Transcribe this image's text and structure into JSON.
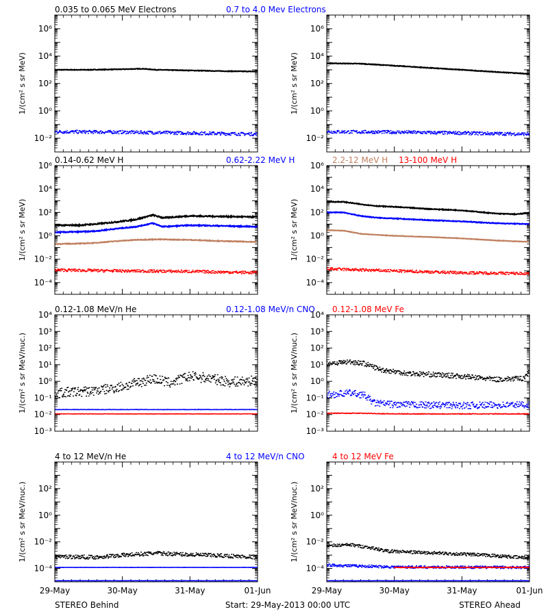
{
  "footer": {
    "left": "STEREO Behind",
    "center": "Start: 29-May-2013 00:00 UTC",
    "right": "STEREO Ahead"
  },
  "x_ticks": [
    "29-May",
    "30-May",
    "31-May",
    "01-Jun"
  ],
  "colors": {
    "black": "#000000",
    "blue": "#0000ff",
    "tan": "#c08060",
    "red": "#ff0000"
  },
  "chart_data": [
    {
      "type": "scatter",
      "row": 0,
      "col": 0,
      "title_segments": [
        {
          "text": "0.035 to 0.065 MeV Electrons",
          "color": "#000000"
        },
        {
          "text": "0.7 to 4.0 Mev Electrons",
          "color": "#0000ff"
        }
      ],
      "ylabel": "1/(cm² s sr MeV)",
      "yscale": "log",
      "ylim_exp": [
        -3,
        7
      ],
      "ytick_exp": [
        -2,
        0,
        2,
        4,
        6
      ],
      "xlim": [
        0,
        3
      ],
      "series": [
        {
          "color": "#000000",
          "style": "line",
          "x": [
            0,
            0.5,
            1.0,
            1.3,
            1.5,
            2.0,
            2.5,
            3.0
          ],
          "y": [
            1000,
            1000,
            1100,
            1200,
            1000,
            900,
            800,
            750
          ],
          "noise": 0.02
        },
        {
          "color": "#0000ff",
          "style": "dots",
          "x": [
            0,
            1.0,
            2.0,
            3.0
          ],
          "y": [
            0.03,
            0.028,
            0.024,
            0.02
          ],
          "noise": 0.12
        }
      ]
    },
    {
      "type": "scatter",
      "row": 0,
      "col": 1,
      "title_segments": [],
      "ylabel": "1/(cm² s sr MeV)",
      "yscale": "log",
      "ylim_exp": [
        -3,
        7
      ],
      "ytick_exp": [
        -2,
        0,
        2,
        4,
        6
      ],
      "xlim": [
        0,
        3
      ],
      "series": [
        {
          "color": "#000000",
          "style": "line",
          "x": [
            0,
            0.5,
            1.0,
            1.5,
            2.0,
            2.5,
            3.0
          ],
          "y": [
            3000,
            2800,
            2000,
            1400,
            1000,
            700,
            500
          ],
          "noise": 0.02
        },
        {
          "color": "#0000ff",
          "style": "dots",
          "x": [
            0,
            1.0,
            2.0,
            3.0
          ],
          "y": [
            0.03,
            0.028,
            0.024,
            0.02
          ],
          "noise": 0.12
        }
      ]
    },
    {
      "type": "scatter",
      "row": 1,
      "col": 0,
      "title_segments": [
        {
          "text": "0.14-0.62 MeV H",
          "color": "#000000"
        },
        {
          "text": "0.62-2.22 MeV H",
          "color": "#0000ff"
        },
        {
          "text": "2.2-12 MeV H",
          "color": "#c08060"
        },
        {
          "text": "13-100 MeV H",
          "color": "#ff0000"
        }
      ],
      "ylabel": "1/(cm² s sr MeV)",
      "yscale": "log",
      "ylim_exp": [
        -5,
        6
      ],
      "ytick_exp": [
        -4,
        -2,
        0,
        2,
        4,
        6
      ],
      "xlim": [
        0,
        3
      ],
      "series": [
        {
          "color": "#000000",
          "style": "line",
          "x": [
            0,
            0.35,
            0.6,
            0.9,
            1.2,
            1.45,
            1.6,
            2.0,
            2.5,
            3.0
          ],
          "y": [
            8,
            8,
            10,
            15,
            25,
            60,
            35,
            50,
            45,
            40
          ],
          "noise": 0.05
        },
        {
          "color": "#0000ff",
          "style": "line",
          "x": [
            0,
            0.35,
            0.6,
            0.9,
            1.2,
            1.45,
            1.6,
            2.0,
            2.5,
            3.0
          ],
          "y": [
            2,
            2.2,
            2.5,
            4,
            6,
            12,
            6,
            8,
            7,
            6
          ],
          "noise": 0.04
        },
        {
          "color": "#c08060",
          "style": "line",
          "x": [
            0,
            0.4,
            0.6,
            0.9,
            1.2,
            1.5,
            2.0,
            2.5,
            3.0
          ],
          "y": [
            0.2,
            0.22,
            0.25,
            0.35,
            0.45,
            0.5,
            0.45,
            0.35,
            0.3
          ],
          "noise": 0.03
        },
        {
          "color": "#ff0000",
          "style": "dots",
          "x": [
            0,
            1.0,
            2.0,
            3.0
          ],
          "y": [
            0.0012,
            0.001,
            0.0009,
            0.0007
          ],
          "noise": 0.12
        }
      ]
    },
    {
      "type": "scatter",
      "row": 1,
      "col": 1,
      "title_segments": [],
      "ylabel": "1/(cm² s sr MeV)",
      "yscale": "log",
      "ylim_exp": [
        -5,
        6
      ],
      "ytick_exp": [
        -4,
        -2,
        0,
        2,
        4,
        6
      ],
      "xlim": [
        0,
        3
      ],
      "series": [
        {
          "color": "#000000",
          "style": "line",
          "x": [
            0,
            0.25,
            0.5,
            0.75,
            1.0,
            1.5,
            2.0,
            2.5,
            2.8,
            3.0
          ],
          "y": [
            800,
            800,
            500,
            350,
            300,
            200,
            150,
            80,
            70,
            90
          ],
          "noise": 0.03
        },
        {
          "color": "#0000ff",
          "style": "line",
          "x": [
            0,
            0.25,
            0.5,
            0.75,
            1.0,
            1.5,
            2.0,
            2.5,
            3.0
          ],
          "y": [
            100,
            100,
            50,
            35,
            30,
            22,
            17,
            12,
            10
          ],
          "noise": 0.03
        },
        {
          "color": "#c08060",
          "style": "line",
          "x": [
            0,
            0.25,
            0.5,
            0.75,
            1.0,
            1.5,
            2.0,
            2.5,
            3.0
          ],
          "y": [
            3.0,
            2.8,
            1.5,
            1.2,
            1.0,
            0.8,
            0.6,
            0.4,
            0.3
          ],
          "noise": 0.02
        },
        {
          "color": "#ff0000",
          "style": "dots",
          "x": [
            0,
            0.5,
            1.0,
            2.0,
            3.0
          ],
          "y": [
            0.0015,
            0.0012,
            0.001,
            0.0007,
            0.0006
          ],
          "noise": 0.12
        }
      ]
    },
    {
      "type": "scatter",
      "row": 2,
      "col": 0,
      "title_segments": [
        {
          "text": "0.12-1.08 MeV/n He",
          "color": "#000000"
        },
        {
          "text": "0.12-1.08 MeV/n CNO",
          "color": "#0000ff"
        },
        {
          "text": "0.12-1.08 MeV Fe",
          "color": "#ff0000"
        }
      ],
      "ylabel": "1/(cm² s sr MeV/nuc.)",
      "yscale": "log",
      "ylim_exp": [
        -3,
        4
      ],
      "ytick_exp": [
        -3,
        -2,
        -1,
        0,
        1,
        2,
        3,
        4
      ],
      "xlim": [
        0,
        3
      ],
      "series": [
        {
          "color": "#000000",
          "style": "dots",
          "x": [
            0,
            0.5,
            0.8,
            1.1,
            1.45,
            1.7,
            2.0,
            2.3,
            2.6,
            3.0
          ],
          "y": [
            0.2,
            0.25,
            0.35,
            0.6,
            1.5,
            0.8,
            2.0,
            1.5,
            0.9,
            1.1
          ],
          "noise": 0.3
        },
        {
          "color": "#0000ff",
          "style": "dots",
          "x": [
            0,
            3.0
          ],
          "y": [
            0.02,
            0.02
          ],
          "noise": 0.01
        },
        {
          "color": "#ff0000",
          "style": "dots",
          "x": [
            0,
            3.0
          ],
          "y": [
            0.011,
            0.011
          ],
          "noise": 0.01
        }
      ]
    },
    {
      "type": "scatter",
      "row": 2,
      "col": 1,
      "title_segments": [],
      "ylabel": "1/(cm² s sr MeV/nuc.)",
      "yscale": "log",
      "ylim_exp": [
        -3,
        4
      ],
      "ytick_exp": [
        -3,
        -2,
        -1,
        0,
        1,
        2,
        3,
        4
      ],
      "xlim": [
        0,
        3
      ],
      "series": [
        {
          "color": "#000000",
          "style": "dots",
          "x": [
            0,
            0.35,
            0.55,
            0.8,
            1.2,
            1.6,
            2.0,
            2.5,
            2.9,
            3.0
          ],
          "y": [
            12,
            15,
            12,
            5,
            3,
            2.5,
            2,
            1.3,
            1.5,
            4
          ],
          "noise": 0.15
        },
        {
          "color": "#0000ff",
          "style": "dots",
          "x": [
            0,
            0.35,
            0.55,
            0.7,
            1.0,
            2.0,
            3.0
          ],
          "y": [
            0.15,
            0.2,
            0.15,
            0.05,
            0.04,
            0.035,
            0.04
          ],
          "noise": 0.2
        },
        {
          "color": "#ff0000",
          "style": "dots",
          "x": [
            0,
            0.5,
            1.0,
            3.0
          ],
          "y": [
            0.012,
            0.012,
            0.011,
            0.011
          ],
          "noise": 0.02
        }
      ]
    },
    {
      "type": "scatter",
      "row": 3,
      "col": 0,
      "title_segments": [
        {
          "text": "4 to 12 MeV/n He",
          "color": "#000000"
        },
        {
          "text": "4 to 12 MeV/n CNO",
          "color": "#0000ff"
        },
        {
          "text": "4 to 12 MeV Fe",
          "color": "#ff0000"
        }
      ],
      "ylabel": "1/(cm² s sr MeV/nuc.)",
      "yscale": "log",
      "ylim_exp": [
        -5,
        4
      ],
      "ytick_exp": [
        -4,
        -2,
        0,
        2
      ],
      "xlim": [
        0,
        3
      ],
      "series": [
        {
          "color": "#000000",
          "style": "dots",
          "x": [
            0,
            0.6,
            1.0,
            1.5,
            2.0,
            2.5,
            3.0
          ],
          "y": [
            0.0008,
            0.0007,
            0.001,
            0.0014,
            0.0011,
            0.0009,
            0.0007
          ],
          "noise": 0.15
        },
        {
          "color": "#0000ff",
          "style": "dots",
          "x": [
            0,
            3.0
          ],
          "y": [
            0.00012,
            0.00012
          ],
          "noise": 0.01
        },
        {
          "color": "#0000ff",
          "style": "dots",
          "x": [
            0,
            3.0
          ],
          "y": [
            1.2e-05,
            1.2e-05
          ],
          "noise": 0.01
        }
      ]
    },
    {
      "type": "scatter",
      "row": 3,
      "col": 1,
      "title_segments": [],
      "ylabel": "1/(cm² s sr MeV/nuc.)",
      "yscale": "log",
      "ylim_exp": [
        -5,
        4
      ],
      "ytick_exp": [
        -4,
        -2,
        0,
        2
      ],
      "xlim": [
        0,
        3
      ],
      "series": [
        {
          "color": "#000000",
          "style": "dots",
          "x": [
            0,
            0.35,
            0.6,
            0.9,
            1.5,
            2.0,
            2.5,
            3.0
          ],
          "y": [
            0.005,
            0.006,
            0.004,
            0.002,
            0.0015,
            0.0012,
            0.0009,
            0.0006
          ],
          "noise": 0.12
        },
        {
          "color": "#0000ff",
          "style": "dots",
          "x": [
            0,
            0.5,
            1.0,
            3.0
          ],
          "y": [
            0.00018,
            0.00015,
            0.00013,
            0.00012
          ],
          "noise": 0.1
        },
        {
          "color": "#ff0000",
          "style": "dots",
          "x": [
            1.0,
            3.0
          ],
          "y": [
            0.00012,
            0.00012
          ],
          "noise": 0.02
        },
        {
          "color": "#0000ff",
          "style": "dots",
          "x": [
            0,
            3.0
          ],
          "y": [
            1.2e-05,
            1.2e-05
          ],
          "noise": 0.01
        }
      ]
    }
  ]
}
